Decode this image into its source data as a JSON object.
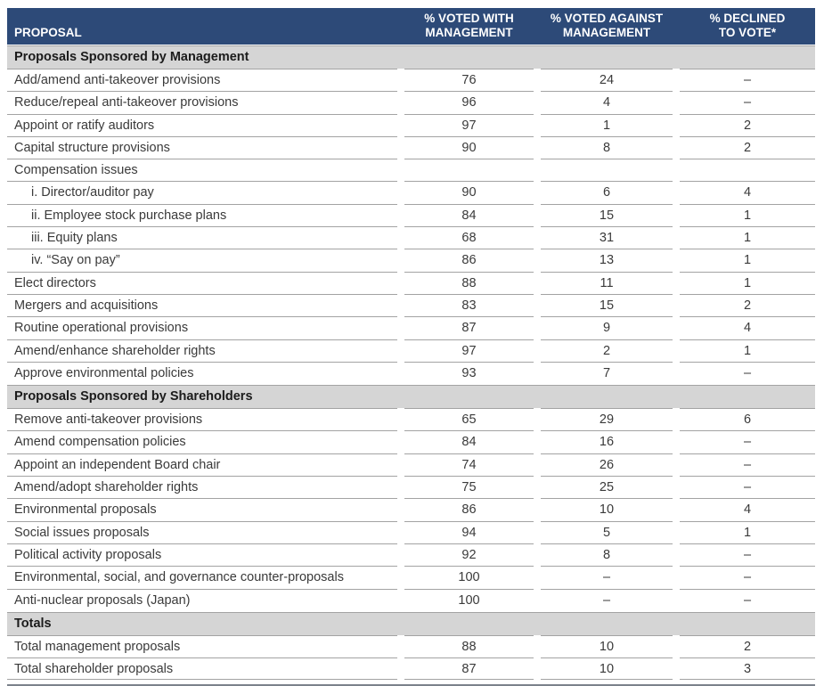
{
  "colors": {
    "header_bg": "#2d4a78",
    "header_text": "#ffffff",
    "section_bg": "#d5d5d5",
    "row_divider": "#a3a3a3",
    "bottom_border": "#7b828b",
    "body_text": "#3a3a3a"
  },
  "table": {
    "header": {
      "proposal": "PROPOSAL",
      "voted_with": "% VOTED WITH\nMANAGEMENT",
      "voted_against": "% VOTED AGAINST\nMANAGEMENT",
      "declined": "% DECLINED\nTO VOTE*"
    },
    "sections": [
      {
        "title": "Proposals Sponsored by Management",
        "rows": [
          {
            "label": "Add/amend anti-takeover provisions",
            "with": "76",
            "against": "24",
            "declined": "–"
          },
          {
            "label": "Reduce/repeal anti-takeover provisions",
            "with": "96",
            "against": "4",
            "declined": "–"
          },
          {
            "label": "Appoint or ratify auditors",
            "with": "97",
            "against": "1",
            "declined": "2"
          },
          {
            "label": "Capital structure provisions",
            "with": "90",
            "against": "8",
            "declined": "2"
          },
          {
            "label": "Compensation issues",
            "with": "",
            "against": "",
            "declined": ""
          },
          {
            "label": "i. Director/auditor pay",
            "indent": true,
            "with": "90",
            "against": "6",
            "declined": "4"
          },
          {
            "label": "ii. Employee stock purchase plans",
            "indent": true,
            "with": "84",
            "against": "15",
            "declined": "1"
          },
          {
            "label": "iii. Equity plans",
            "indent": true,
            "with": "68",
            "against": "31",
            "declined": "1"
          },
          {
            "label": "iv. “Say on pay”",
            "indent": true,
            "with": "86",
            "against": "13",
            "declined": "1"
          },
          {
            "label": "Elect directors",
            "with": "88",
            "against": "11",
            "declined": "1"
          },
          {
            "label": "Mergers and acquisitions",
            "with": "83",
            "against": "15",
            "declined": "2"
          },
          {
            "label": "Routine operational provisions",
            "with": "87",
            "against": "9",
            "declined": "4"
          },
          {
            "label": "Amend/enhance shareholder rights",
            "with": "97",
            "against": "2",
            "declined": "1"
          },
          {
            "label": "Approve environmental policies",
            "with": "93",
            "against": "7",
            "declined": "–"
          }
        ]
      },
      {
        "title": "Proposals Sponsored by Shareholders",
        "rows": [
          {
            "label": "Remove anti-takeover provisions",
            "with": "65",
            "against": "29",
            "declined": "6"
          },
          {
            "label": "Amend compensation policies",
            "with": "84",
            "against": "16",
            "declined": "–"
          },
          {
            "label": "Appoint an independent Board chair",
            "with": "74",
            "against": "26",
            "declined": "–"
          },
          {
            "label": "Amend/adopt shareholder rights",
            "with": "75",
            "against": "25",
            "declined": "–"
          },
          {
            "label": "Environmental proposals",
            "with": "86",
            "against": "10",
            "declined": "4"
          },
          {
            "label": "Social issues proposals",
            "with": "94",
            "against": "5",
            "declined": "1"
          },
          {
            "label": "Political activity proposals",
            "with": "92",
            "against": "8",
            "declined": "–"
          },
          {
            "label": "Environmental, social, and governance counter-proposals",
            "with": "100",
            "against": "–",
            "declined": "–"
          },
          {
            "label": "Anti-nuclear proposals (Japan)",
            "with": "100",
            "against": "–",
            "declined": "–"
          }
        ]
      },
      {
        "title": "Totals",
        "rows": [
          {
            "label": "Total management proposals",
            "with": "88",
            "against": "10",
            "declined": "2"
          },
          {
            "label": "Total shareholder proposals",
            "with": "87",
            "against": "10",
            "declined": "3"
          }
        ]
      }
    ]
  }
}
